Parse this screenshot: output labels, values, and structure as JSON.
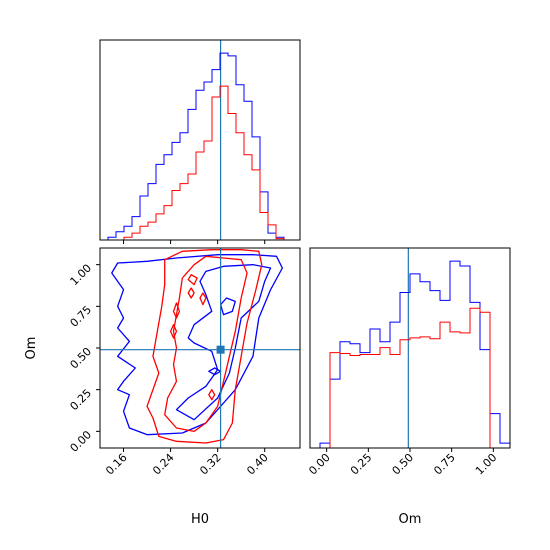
{
  "chart_data": {
    "type": "corner",
    "parameters": [
      "H0",
      "Om"
    ],
    "xlabels": {
      "H0": "H0",
      "Om": "Om"
    },
    "ylabels": {
      "Om": "Om"
    },
    "truth": {
      "H0": 0.325,
      "Om": 0.49
    },
    "truth_color": "#1f77b4",
    "series_colors": {
      "blue": "#0000ff",
      "red": "#ff0000"
    },
    "ranges": {
      "H0": [
        0.12,
        0.46
      ],
      "Om": [
        -0.1,
        1.1
      ]
    },
    "ticks": {
      "H0": [
        0.16,
        0.24,
        0.32,
        0.4
      ],
      "Om_x": [
        0.0,
        0.25,
        0.5,
        0.75,
        1.0
      ],
      "Om_y": [
        0.0,
        0.25,
        0.5,
        0.75,
        1.0
      ]
    },
    "tick_labels": {
      "H0": [
        "0.16",
        "0.24",
        "0.32",
        "0.40"
      ],
      "Om_x": [
        "0.00",
        "0.25",
        "0.50",
        "0.75",
        "1.00"
      ],
      "Om_y": [
        "0.00",
        "0.25",
        "0.50",
        "0.75",
        "1.00"
      ]
    },
    "hist_H0": {
      "bin_edges": [
        0.12,
        0.1336,
        0.1472,
        0.1608,
        0.1744,
        0.188,
        0.2016,
        0.2152,
        0.2288,
        0.2424,
        0.256,
        0.2696,
        0.2832,
        0.2968,
        0.3104,
        0.324,
        0.3376,
        0.3512,
        0.3648,
        0.3784,
        0.392,
        0.4056,
        0.4192,
        0.4328,
        0.4464,
        0.46
      ],
      "blue": [
        0,
        2,
        6,
        10,
        17,
        32,
        41,
        55,
        62,
        71,
        78,
        95,
        109,
        115,
        124,
        136,
        134,
        113,
        101,
        75,
        35,
        5,
        2,
        0,
        0
      ],
      "red": [
        0,
        0,
        0,
        2,
        5,
        10,
        13,
        19,
        25,
        36,
        41,
        48,
        64,
        72,
        104,
        112,
        92,
        78,
        62,
        51,
        20,
        11,
        1,
        0,
        0
      ]
    },
    "hist_Om": {
      "bin_edges": [
        -0.1,
        -0.04,
        0.02,
        0.08,
        0.14,
        0.2,
        0.26,
        0.32,
        0.38,
        0.44,
        0.5,
        0.56,
        0.62,
        0.68,
        0.74,
        0.8,
        0.86,
        0.92,
        0.98,
        1.04,
        1.1
      ],
      "blue": [
        0,
        5,
        70,
        108,
        106,
        97,
        121,
        108,
        128,
        158,
        177,
        169,
        160,
        150,
        190,
        185,
        148,
        100,
        35,
        5
      ],
      "red": [
        0,
        0,
        97,
        96,
        94,
        95,
        95,
        102,
        95,
        110,
        112,
        113,
        111,
        128,
        118,
        117,
        142,
        138,
        0,
        0
      ]
    },
    "contours": {
      "blue": [
        [
          [
            0.14,
            0.95
          ],
          [
            0.15,
            1.01
          ],
          [
            0.2,
            1.02
          ],
          [
            0.25,
            1.04
          ],
          [
            0.32,
            1.06
          ],
          [
            0.38,
            1.06
          ],
          [
            0.42,
            1.05
          ],
          [
            0.43,
            0.98
          ],
          [
            0.41,
            0.85
          ],
          [
            0.39,
            0.68
          ],
          [
            0.38,
            0.45
          ],
          [
            0.35,
            0.25
          ],
          [
            0.3,
            0.05
          ],
          [
            0.26,
            -0.01
          ],
          [
            0.2,
            -0.02
          ],
          [
            0.17,
            0.02
          ],
          [
            0.16,
            0.12
          ],
          [
            0.17,
            0.22
          ],
          [
            0.15,
            0.25
          ],
          [
            0.16,
            0.3
          ],
          [
            0.18,
            0.38
          ],
          [
            0.15,
            0.45
          ],
          [
            0.17,
            0.54
          ],
          [
            0.15,
            0.62
          ],
          [
            0.16,
            0.68
          ],
          [
            0.15,
            0.75
          ],
          [
            0.16,
            0.85
          ],
          [
            0.14,
            0.95
          ]
        ],
        [
          [
            0.3,
            0.96
          ],
          [
            0.33,
            0.99
          ],
          [
            0.38,
            1.0
          ],
          [
            0.41,
            0.98
          ],
          [
            0.4,
            0.9
          ],
          [
            0.39,
            0.78
          ],
          [
            0.36,
            0.68
          ],
          [
            0.35,
            0.5
          ],
          [
            0.34,
            0.35
          ],
          [
            0.32,
            0.2
          ],
          [
            0.28,
            0.07
          ],
          [
            0.25,
            0.13
          ],
          [
            0.27,
            0.2
          ],
          [
            0.3,
            0.27
          ],
          [
            0.32,
            0.37
          ],
          [
            0.31,
            0.48
          ],
          [
            0.28,
            0.53
          ],
          [
            0.27,
            0.56
          ],
          [
            0.28,
            0.64
          ],
          [
            0.31,
            0.72
          ],
          [
            0.3,
            0.82
          ],
          [
            0.29,
            0.9
          ],
          [
            0.3,
            0.96
          ]
        ],
        [
          [
            0.325,
            0.76
          ],
          [
            0.335,
            0.8
          ],
          [
            0.35,
            0.78
          ],
          [
            0.345,
            0.72
          ],
          [
            0.33,
            0.7
          ],
          [
            0.325,
            0.76
          ]
        ],
        [
          [
            0.305,
            0.36
          ],
          [
            0.315,
            0.38
          ],
          [
            0.325,
            0.36
          ],
          [
            0.315,
            0.34
          ],
          [
            0.305,
            0.36
          ]
        ]
      ],
      "red": [
        [
          [
            0.23,
            1.03
          ],
          [
            0.26,
            1.08
          ],
          [
            0.31,
            1.09
          ],
          [
            0.36,
            1.09
          ],
          [
            0.39,
            1.08
          ],
          [
            0.395,
            1.0
          ],
          [
            0.385,
            0.85
          ],
          [
            0.37,
            0.65
          ],
          [
            0.36,
            0.45
          ],
          [
            0.35,
            0.25
          ],
          [
            0.345,
            0.05
          ],
          [
            0.33,
            -0.05
          ],
          [
            0.3,
            -0.07
          ],
          [
            0.25,
            -0.06
          ],
          [
            0.22,
            -0.03
          ],
          [
            0.21,
            0.08
          ],
          [
            0.2,
            0.15
          ],
          [
            0.21,
            0.25
          ],
          [
            0.22,
            0.35
          ],
          [
            0.21,
            0.45
          ],
          [
            0.215,
            0.55
          ],
          [
            0.22,
            0.65
          ],
          [
            0.225,
            0.75
          ],
          [
            0.23,
            0.88
          ],
          [
            0.23,
            1.03
          ]
        ],
        [
          [
            0.28,
            1.0
          ],
          [
            0.3,
            1.05
          ],
          [
            0.33,
            1.04
          ],
          [
            0.36,
            1.03
          ],
          [
            0.37,
            0.95
          ],
          [
            0.36,
            0.8
          ],
          [
            0.35,
            0.6
          ],
          [
            0.34,
            0.45
          ],
          [
            0.33,
            0.3
          ],
          [
            0.32,
            0.15
          ],
          [
            0.3,
            0.05
          ],
          [
            0.28,
            0.0
          ],
          [
            0.25,
            0.02
          ],
          [
            0.23,
            0.1
          ],
          [
            0.235,
            0.2
          ],
          [
            0.25,
            0.3
          ],
          [
            0.245,
            0.4
          ],
          [
            0.25,
            0.5
          ],
          [
            0.245,
            0.6
          ],
          [
            0.25,
            0.7
          ],
          [
            0.255,
            0.8
          ],
          [
            0.26,
            0.92
          ],
          [
            0.28,
            1.0
          ]
        ],
        [
          [
            0.27,
            0.91
          ],
          [
            0.275,
            0.94
          ],
          [
            0.285,
            0.92
          ],
          [
            0.28,
            0.88
          ],
          [
            0.27,
            0.91
          ]
        ],
        [
          [
            0.29,
            0.8
          ],
          [
            0.295,
            0.83
          ],
          [
            0.3,
            0.8
          ],
          [
            0.295,
            0.76
          ],
          [
            0.29,
            0.8
          ]
        ],
        [
          [
            0.27,
            0.83
          ],
          [
            0.275,
            0.86
          ],
          [
            0.28,
            0.83
          ],
          [
            0.275,
            0.8
          ],
          [
            0.27,
            0.83
          ]
        ],
        [
          [
            0.24,
            0.6
          ],
          [
            0.245,
            0.64
          ],
          [
            0.25,
            0.6
          ],
          [
            0.245,
            0.56
          ],
          [
            0.24,
            0.6
          ]
        ],
        [
          [
            0.245,
            0.72
          ],
          [
            0.25,
            0.77
          ],
          [
            0.255,
            0.72
          ],
          [
            0.25,
            0.68
          ],
          [
            0.245,
            0.72
          ]
        ],
        [
          [
            0.305,
            0.22
          ],
          [
            0.31,
            0.25
          ],
          [
            0.315,
            0.22
          ],
          [
            0.31,
            0.19
          ],
          [
            0.305,
            0.22
          ]
        ]
      ]
    }
  }
}
